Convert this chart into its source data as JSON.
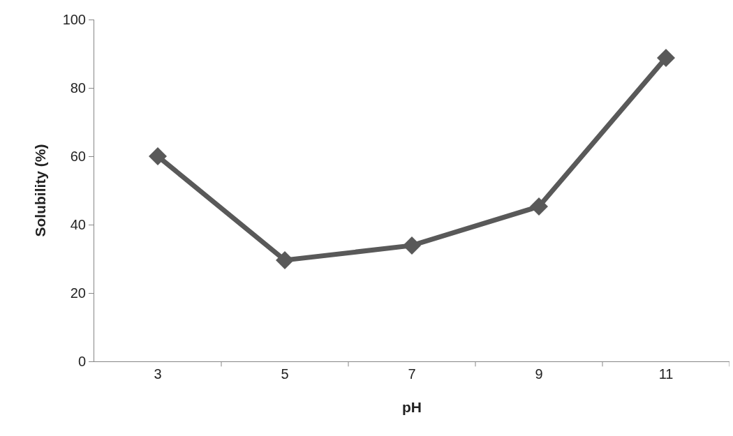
{
  "chart_data": {
    "type": "line",
    "xlabel": "pH",
    "ylabel": "Solubility (%)",
    "categories": [
      "3",
      "5",
      "7",
      "9",
      "11"
    ],
    "series": [
      {
        "color": "#595959",
        "values": [
          60,
          29.6,
          33.9,
          45.3,
          88.8
        ]
      }
    ],
    "ylim": [
      0,
      100
    ],
    "yticks": [
      0,
      20,
      40,
      60,
      80,
      100
    ],
    "grid": false,
    "marker": "diamond",
    "line_style": "solid"
  }
}
